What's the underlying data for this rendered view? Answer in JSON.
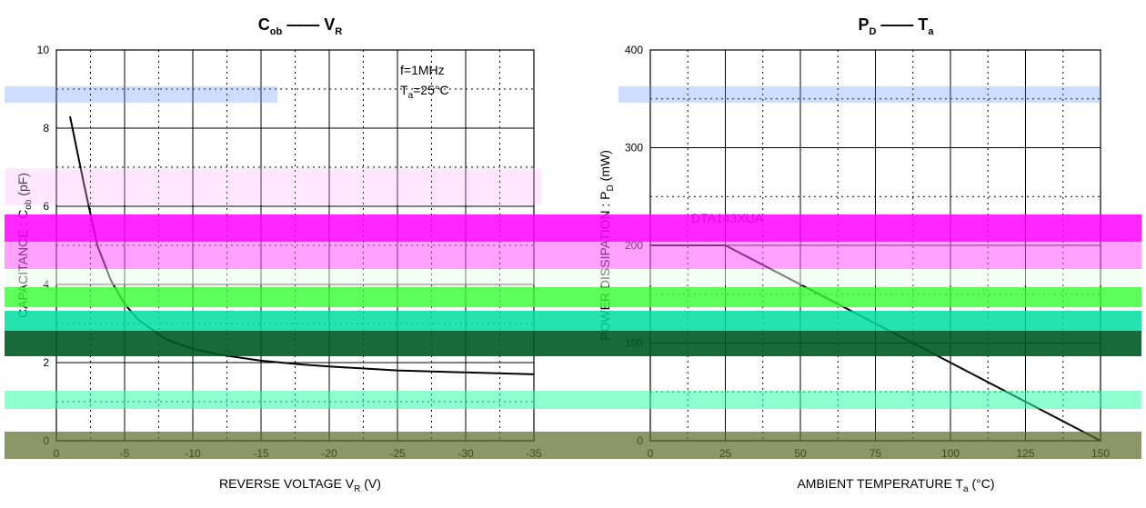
{
  "chart_data": [
    {
      "type": "line",
      "title": "C",
      "title_sub": "ob",
      "title_connector": "——",
      "title_var": "V",
      "title_var_sub": "R",
      "xlabel": "REVERSE VOLTAGE  V",
      "xlabel_sub": "R",
      "xlabel_unit": "(V)",
      "ylabel": "C",
      "ylabel_sub": "ob",
      "ylabel_text": "CAPACITANCE",
      "ylabel_unit": "(pF)",
      "xlim": [
        0,
        -35
      ],
      "ylim": [
        0,
        10
      ],
      "x_ticks": [
        0,
        -5,
        -10,
        -15,
        -20,
        -25,
        -30,
        -35
      ],
      "x_tick_labels": [
        "0",
        "-5",
        "-10",
        "-15",
        "-20",
        "-25",
        "-30",
        "-35"
      ],
      "y_ticks": [
        0,
        2,
        4,
        6,
        8,
        10
      ],
      "y_tick_labels": [
        "0",
        "2",
        "4",
        "6",
        "8",
        "10"
      ],
      "grid": true,
      "annotations": [
        "f=1MHz",
        "T",
        "a",
        "=25°C"
      ],
      "series": [
        {
          "x": [
            -1,
            -2,
            -3,
            -4,
            -5,
            -6,
            -8,
            -10,
            -12,
            -15,
            -18,
            -20,
            -25,
            -30,
            -35
          ],
          "y": [
            8.3,
            6.6,
            5.0,
            4.1,
            3.5,
            3.1,
            2.6,
            2.35,
            2.2,
            2.05,
            1.95,
            1.9,
            1.8,
            1.75,
            1.7
          ]
        }
      ]
    },
    {
      "type": "line",
      "title": "P",
      "title_sub": "D",
      "title_connector": "——",
      "title_var": "T",
      "title_var_sub": "a",
      "xlabel": "AMBIENT TEMPERATURE  T",
      "xlabel_sub": "a",
      "xlabel_unit": "(°C)",
      "ylabel": "P",
      "ylabel_sub": "D",
      "ylabel_text": "POWER DISSIPATION",
      "ylabel_unit": "(mW)",
      "xlim": [
        0,
        150
      ],
      "ylim": [
        0,
        400
      ],
      "x_ticks": [
        0,
        25,
        50,
        75,
        100,
        125,
        150
      ],
      "x_tick_labels": [
        "0",
        "25",
        "50",
        "75",
        "100",
        "125",
        "150"
      ],
      "y_ticks": [
        0,
        100,
        200,
        300,
        400
      ],
      "y_tick_labels": [
        "0",
        "100",
        "200",
        "300",
        "400"
      ],
      "grid": true,
      "annotations": [
        "DTA143XUA"
      ],
      "series": [
        {
          "x": [
            0,
            25,
            150
          ],
          "y": [
            200,
            200,
            0
          ]
        }
      ]
    }
  ]
}
